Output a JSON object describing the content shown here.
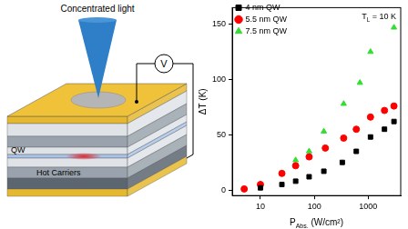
{
  "diagram": {
    "light_label": "Concentrated light",
    "meter_label": "V",
    "qw_label": "QW",
    "carrier_label": "Hot Carriers"
  },
  "chart_data": {
    "type": "scatter",
    "xlabel": {
      "text": "P",
      "subscript": "Abs.",
      "suffix": " (W/cm²)"
    },
    "ylabel": "ΔT (K)",
    "annotation": {
      "text": "T",
      "subscript": "L",
      "suffix": " = 10 K"
    },
    "log": "x",
    "grid": false,
    "legend": "upper left",
    "xlim": [
      3,
      4000
    ],
    "xticks": [
      10,
      100,
      1000
    ],
    "ylim": [
      -5,
      165
    ],
    "yticks": [
      0,
      50,
      100,
      150
    ],
    "series": [
      {
        "name": "4 nm QW",
        "color": "#000000",
        "marker": "square",
        "x": [
          10,
          25,
          45,
          80,
          150,
          330,
          600,
          1100,
          2000,
          3000
        ],
        "values": [
          2,
          5,
          8,
          12,
          17,
          25,
          35,
          48,
          55,
          62
        ]
      },
      {
        "name": "5.5 nm QW",
        "color": "#ff0000",
        "marker": "circle",
        "x": [
          5,
          10,
          25,
          45,
          80,
          160,
          350,
          600,
          1100,
          2000,
          3000
        ],
        "values": [
          1,
          5,
          15,
          22,
          30,
          38,
          47,
          55,
          66,
          72,
          76
        ]
      },
      {
        "name": "7.5 nm QW",
        "color": "#33dd33",
        "marker": "triangle",
        "x": [
          10,
          25,
          45,
          80,
          150,
          350,
          700,
          1100,
          3000
        ],
        "values": [
          5,
          15,
          27,
          35,
          53,
          78,
          97,
          125,
          147
        ]
      }
    ]
  }
}
